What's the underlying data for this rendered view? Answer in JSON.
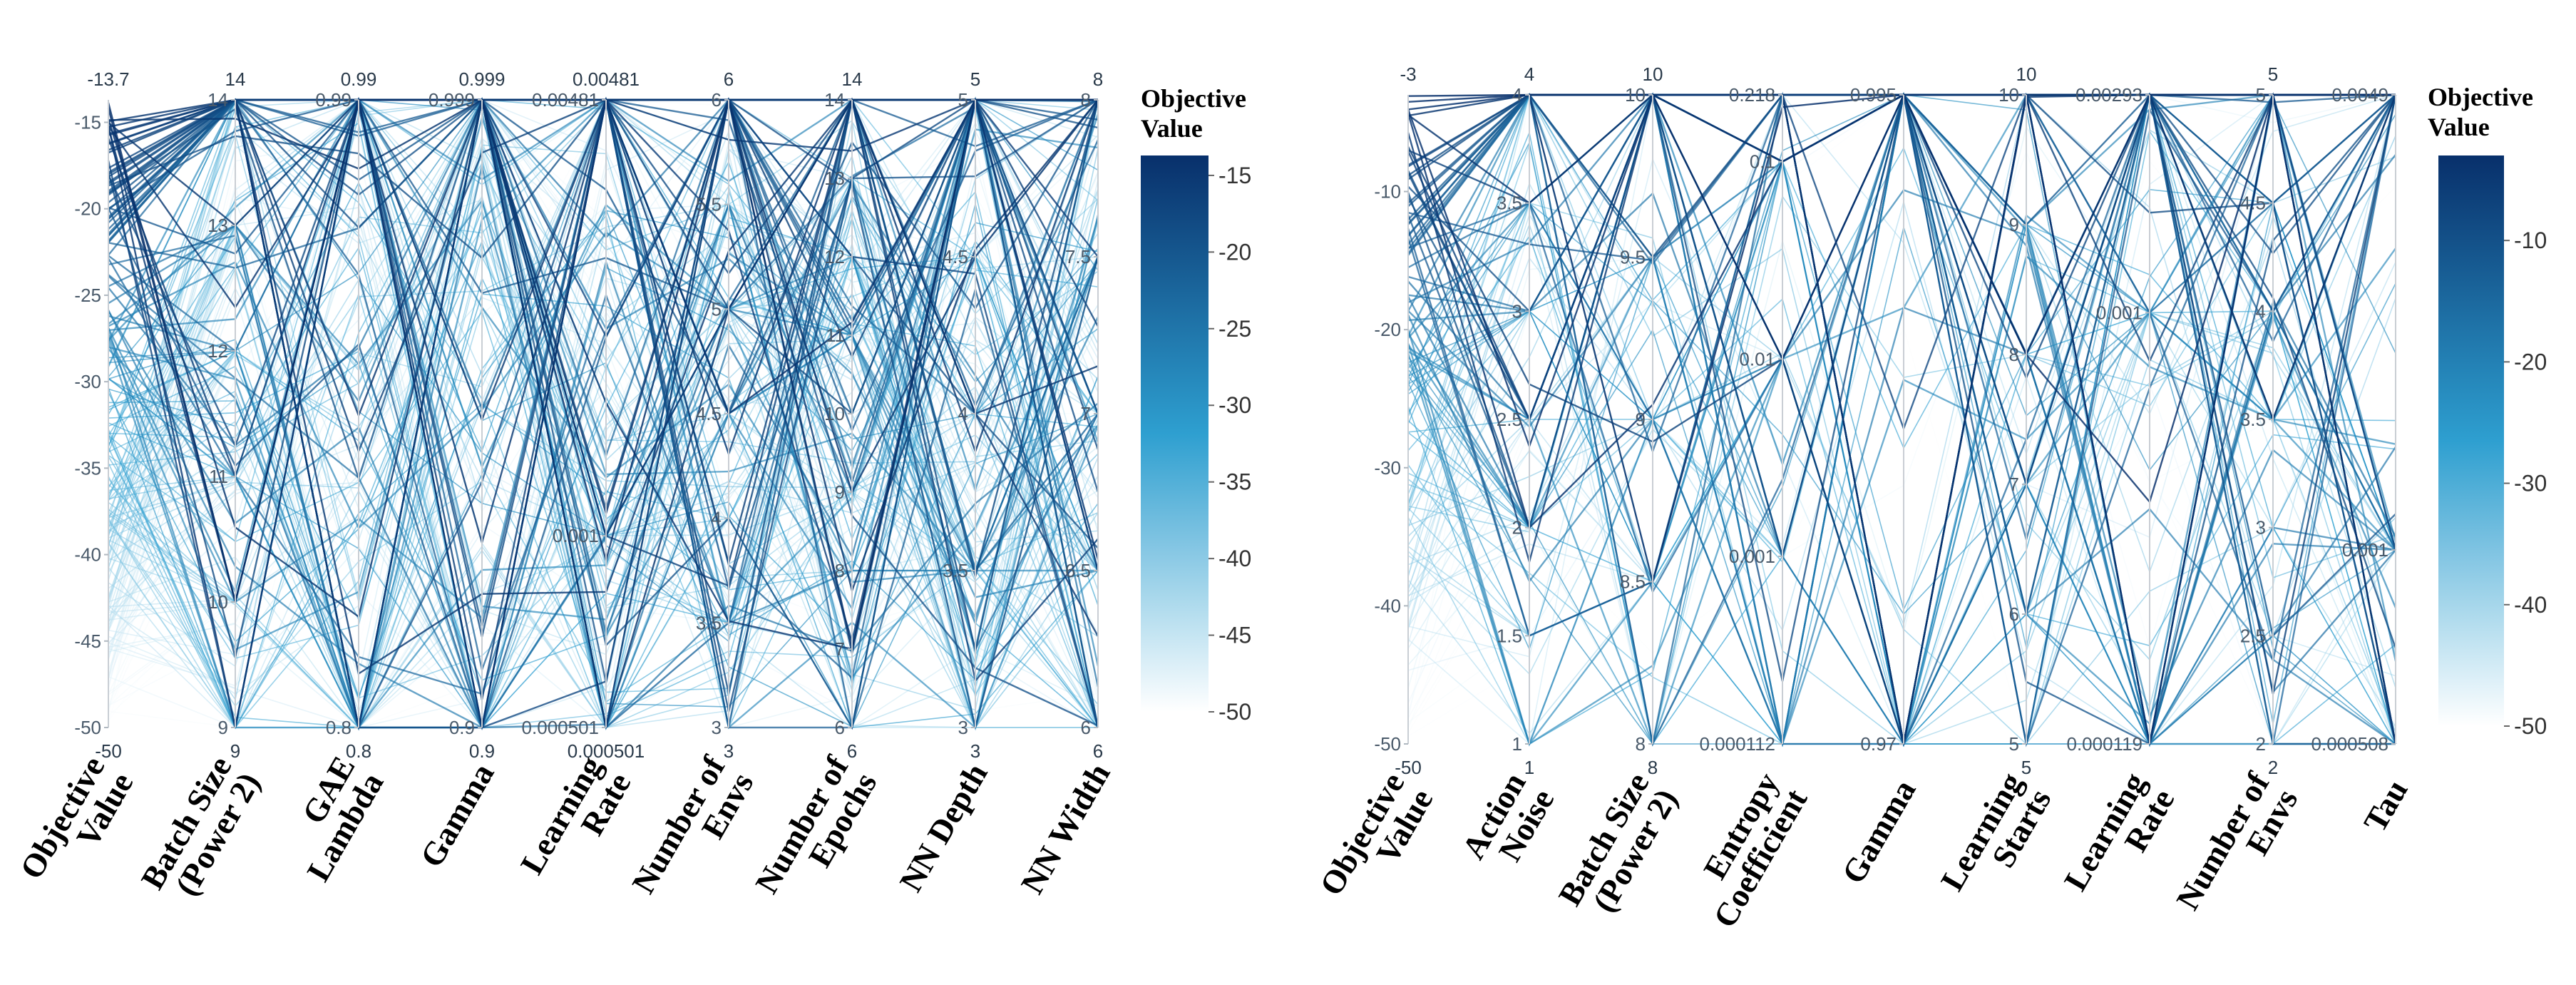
{
  "chart_data": [
    {
      "type": "parallel_coordinates",
      "colorbar": {
        "title_lines": [
          "Objective",
          "Value"
        ],
        "range": [
          -50,
          -13.7
        ],
        "ticks": [
          "-15",
          "-20",
          "-25",
          "-30",
          "-35",
          "-40",
          "-45",
          "-50"
        ],
        "tick_values": [
          -15,
          -20,
          -25,
          -30,
          -35,
          -40,
          -45,
          -50
        ],
        "color_low": "#ffffff",
        "color_mid": "#2e9fd0",
        "color_high": "#08306b"
      },
      "axes": [
        {
          "label_lines": [
            "Objective",
            "Value"
          ],
          "min_label": "-50",
          "max_label": "-13.7",
          "range": [
            -50,
            -13.7
          ],
          "ticks": [
            "-15",
            "-20",
            "-25",
            "-30",
            "-35",
            "-40",
            "-45",
            "-50"
          ],
          "tick_values": [
            -15,
            -20,
            -25,
            -30,
            -35,
            -40,
            -45,
            -50
          ]
        },
        {
          "label_lines": [
            "Batch Size",
            "(Power 2)"
          ],
          "min_label": "9",
          "max_label": "14",
          "range": [
            9,
            14
          ],
          "ticks": [
            "14",
            "13",
            "12",
            "11",
            "10",
            "9"
          ],
          "tick_values": [
            14,
            13,
            12,
            11,
            10,
            9
          ]
        },
        {
          "label_lines": [
            "GAE",
            "Lambda"
          ],
          "min_label": "0.8",
          "max_label": "0.99",
          "range": [
            0.8,
            0.99
          ],
          "ticks": [
            "0.99",
            "0.8"
          ],
          "tick_values": [
            0.99,
            0.8
          ]
        },
        {
          "label_lines": [
            "Gamma"
          ],
          "min_label": "0.9",
          "max_label": "0.999",
          "range": [
            0.9,
            0.999
          ],
          "ticks": [
            "0.999",
            "0.9"
          ],
          "tick_values": [
            0.999,
            0.9
          ]
        },
        {
          "label_lines": [
            "Learning",
            "Rate"
          ],
          "min_label": "0.000501",
          "max_label": "0.00481",
          "range": [
            0.000501,
            0.00481
          ],
          "scale": "log",
          "ticks": [
            "0.00481",
            "0.001",
            "0.000501"
          ],
          "tick_values": [
            0.00481,
            0.001,
            0.000501
          ]
        },
        {
          "label_lines": [
            "Number of",
            "Envs"
          ],
          "min_label": "3",
          "max_label": "6",
          "range": [
            3,
            6
          ],
          "ticks": [
            "6",
            "5.5",
            "5",
            "4.5",
            "4",
            "3.5",
            "3"
          ],
          "tick_values": [
            6,
            5.5,
            5,
            4.5,
            4,
            3.5,
            3
          ]
        },
        {
          "label_lines": [
            "Number of",
            "Epochs"
          ],
          "min_label": "6",
          "max_label": "14",
          "range": [
            6,
            14
          ],
          "ticks": [
            "14",
            "13",
            "12",
            "11",
            "10",
            "9",
            "8",
            "7",
            "6"
          ],
          "tick_values": [
            14,
            13,
            12,
            11,
            10,
            9,
            8,
            7,
            6
          ]
        },
        {
          "label_lines": [
            "NN Depth"
          ],
          "min_label": "3",
          "max_label": "5",
          "range": [
            3,
            5
          ],
          "ticks": [
            "5",
            "4.5",
            "4",
            "3.5",
            "3"
          ],
          "tick_values": [
            5,
            4.5,
            4,
            3.5,
            3
          ]
        },
        {
          "label_lines": [
            "NN Width"
          ],
          "min_label": "6",
          "max_label": "8",
          "range": [
            6,
            8
          ],
          "ticks": [
            "8",
            "7.5",
            "7",
            "6.5",
            "6"
          ],
          "tick_values": [
            8,
            7.5,
            7,
            6.5,
            6
          ]
        }
      ]
    },
    {
      "type": "parallel_coordinates",
      "colorbar": {
        "title_lines": [
          "Objective",
          "Value"
        ],
        "range": [
          -50,
          -3
        ],
        "ticks": [
          "-10",
          "-20",
          "-30",
          "-40",
          "-50"
        ],
        "tick_values": [
          -10,
          -20,
          -30,
          -40,
          -50
        ],
        "color_low": "#ffffff",
        "color_mid": "#2e9fd0",
        "color_high": "#08306b"
      },
      "axes": [
        {
          "label_lines": [
            "Objective",
            "Value"
          ],
          "min_label": "-50",
          "max_label": "-3",
          "range": [
            -50,
            -3
          ],
          "ticks": [
            "-10",
            "-20",
            "-30",
            "-40",
            "-50"
          ],
          "tick_values": [
            -10,
            -20,
            -30,
            -40,
            -50
          ]
        },
        {
          "label_lines": [
            "Action",
            "Noise"
          ],
          "min_label": "1",
          "max_label": "4",
          "range": [
            1,
            4
          ],
          "ticks": [
            "4",
            "3.5",
            "3",
            "2.5",
            "2",
            "1.5",
            "1"
          ],
          "tick_values": [
            4,
            3.5,
            3,
            2.5,
            2,
            1.5,
            1
          ]
        },
        {
          "label_lines": [
            "Batch Size",
            "(Power 2)"
          ],
          "min_label": "8",
          "max_label": "10",
          "range": [
            8,
            10
          ],
          "ticks": [
            "10",
            "9.5",
            "9",
            "8.5",
            "8"
          ],
          "tick_values": [
            10,
            9.5,
            9,
            8.5,
            8
          ]
        },
        {
          "label_lines": [
            "Entropy",
            "Coefficient"
          ],
          "min_label": "",
          "max_label": "",
          "range": [
            0.000112,
            0.218
          ],
          "scale": "log",
          "ticks": [
            "0.218",
            "0.1",
            "0.01",
            "0.001",
            "0.000112"
          ],
          "tick_values": [
            0.218,
            0.1,
            0.01,
            0.001,
            0.000112
          ]
        },
        {
          "label_lines": [
            "Gamma"
          ],
          "min_label": "",
          "max_label": "",
          "range": [
            0.97,
            0.995
          ],
          "ticks": [
            "0.995",
            "0.97"
          ],
          "tick_values": [
            0.995,
            0.97
          ]
        },
        {
          "label_lines": [
            "Learning",
            "Starts"
          ],
          "min_label": "5",
          "max_label": "10",
          "range": [
            5,
            10
          ],
          "ticks": [
            "10",
            "9",
            "8",
            "7",
            "6",
            "5"
          ],
          "tick_values": [
            10,
            9,
            8,
            7,
            6,
            5
          ]
        },
        {
          "label_lines": [
            "Learning",
            "Rate"
          ],
          "min_label": "",
          "max_label": "",
          "range": [
            0.000119,
            0.00293
          ],
          "scale": "log",
          "ticks": [
            "0.00293",
            "0.001",
            "0.000119"
          ],
          "tick_values": [
            0.00293,
            0.001,
            0.000119
          ]
        },
        {
          "label_lines": [
            "Number of",
            "Envs"
          ],
          "min_label": "2",
          "max_label": "5",
          "range": [
            2,
            5
          ],
          "ticks": [
            "5",
            "4.5",
            "4",
            "3.5",
            "3",
            "2.5",
            "2"
          ],
          "tick_values": [
            5,
            4.5,
            4,
            3.5,
            3,
            2.5,
            2
          ]
        },
        {
          "label_lines": [
            "Tau"
          ],
          "min_label": "",
          "max_label": "",
          "range": [
            0.000508,
            0.0049
          ],
          "scale": "log",
          "ticks": [
            "0.0049",
            "0.001",
            "0.000508"
          ],
          "tick_values": [
            0.0049,
            0.001,
            0.000508
          ]
        }
      ]
    }
  ]
}
